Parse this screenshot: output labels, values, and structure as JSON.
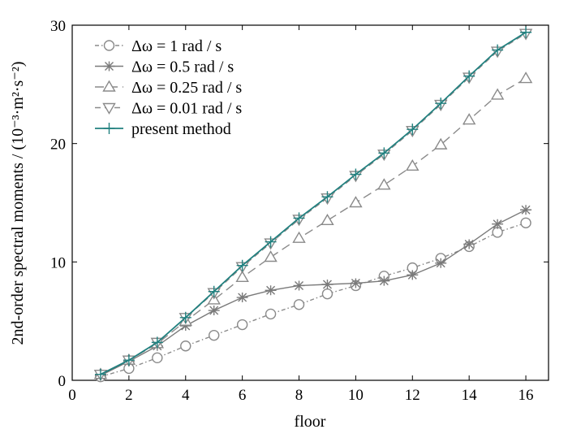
{
  "chart_data": {
    "type": "line",
    "xlabel": "floor",
    "ylabel": "2nd-order spectral moments / (10⁻³·m²·s⁻²)",
    "xlim": [
      0,
      16.8
    ],
    "ylim": [
      0,
      30
    ],
    "x_ticks": [
      "0",
      "2",
      "4",
      "6",
      "8",
      "10",
      "12",
      "14",
      "16"
    ],
    "y_ticks": [
      "0",
      "10",
      "20",
      "30"
    ],
    "x": [
      1,
      2,
      3,
      4,
      5,
      6,
      7,
      8,
      9,
      10,
      11,
      12,
      13,
      14,
      15,
      16
    ],
    "legend_position": "top-left",
    "grid": false,
    "series": [
      {
        "name": "Δω = 1 rad / s",
        "color": "#8a8a8a",
        "marker": "circle",
        "line_style": "dash-dot",
        "values": [
          0.3,
          1.0,
          1.9,
          2.9,
          3.8,
          4.7,
          5.6,
          6.4,
          7.3,
          8.0,
          8.8,
          9.5,
          10.3,
          11.3,
          12.5,
          13.3
        ]
      },
      {
        "name": "Δω = 0.5 rad / s",
        "color": "#7a7a7a",
        "marker": "asterisk",
        "line_style": "solid",
        "values": [
          0.4,
          1.6,
          2.9,
          4.6,
          5.9,
          7.0,
          7.6,
          8.0,
          8.1,
          8.2,
          8.4,
          8.9,
          9.9,
          11.5,
          13.2,
          14.4
        ]
      },
      {
        "name": "Δω = 0.25 rad / s",
        "color": "#8a8a8a",
        "marker": "triangle-up",
        "line_style": "long-dash",
        "values": [
          0.5,
          1.7,
          3.1,
          5.0,
          6.8,
          8.7,
          10.4,
          12.0,
          13.5,
          15.0,
          16.5,
          18.1,
          19.9,
          22.0,
          24.1,
          25.5
        ]
      },
      {
        "name": "Δω = 0.01 rad / s",
        "color": "#8a8a8a",
        "marker": "triangle-down",
        "line_style": "dash",
        "values": [
          0.5,
          1.7,
          3.2,
          5.3,
          7.4,
          9.6,
          11.6,
          13.6,
          15.4,
          17.3,
          19.1,
          21.1,
          23.3,
          25.6,
          27.8,
          29.3
        ]
      },
      {
        "name": "present method",
        "color": "#21807f",
        "marker": "plus",
        "line_style": "solid",
        "values": [
          0.5,
          1.7,
          3.2,
          5.3,
          7.5,
          9.7,
          11.7,
          13.7,
          15.5,
          17.4,
          19.2,
          21.2,
          23.4,
          25.7,
          27.9,
          29.4
        ]
      }
    ]
  }
}
